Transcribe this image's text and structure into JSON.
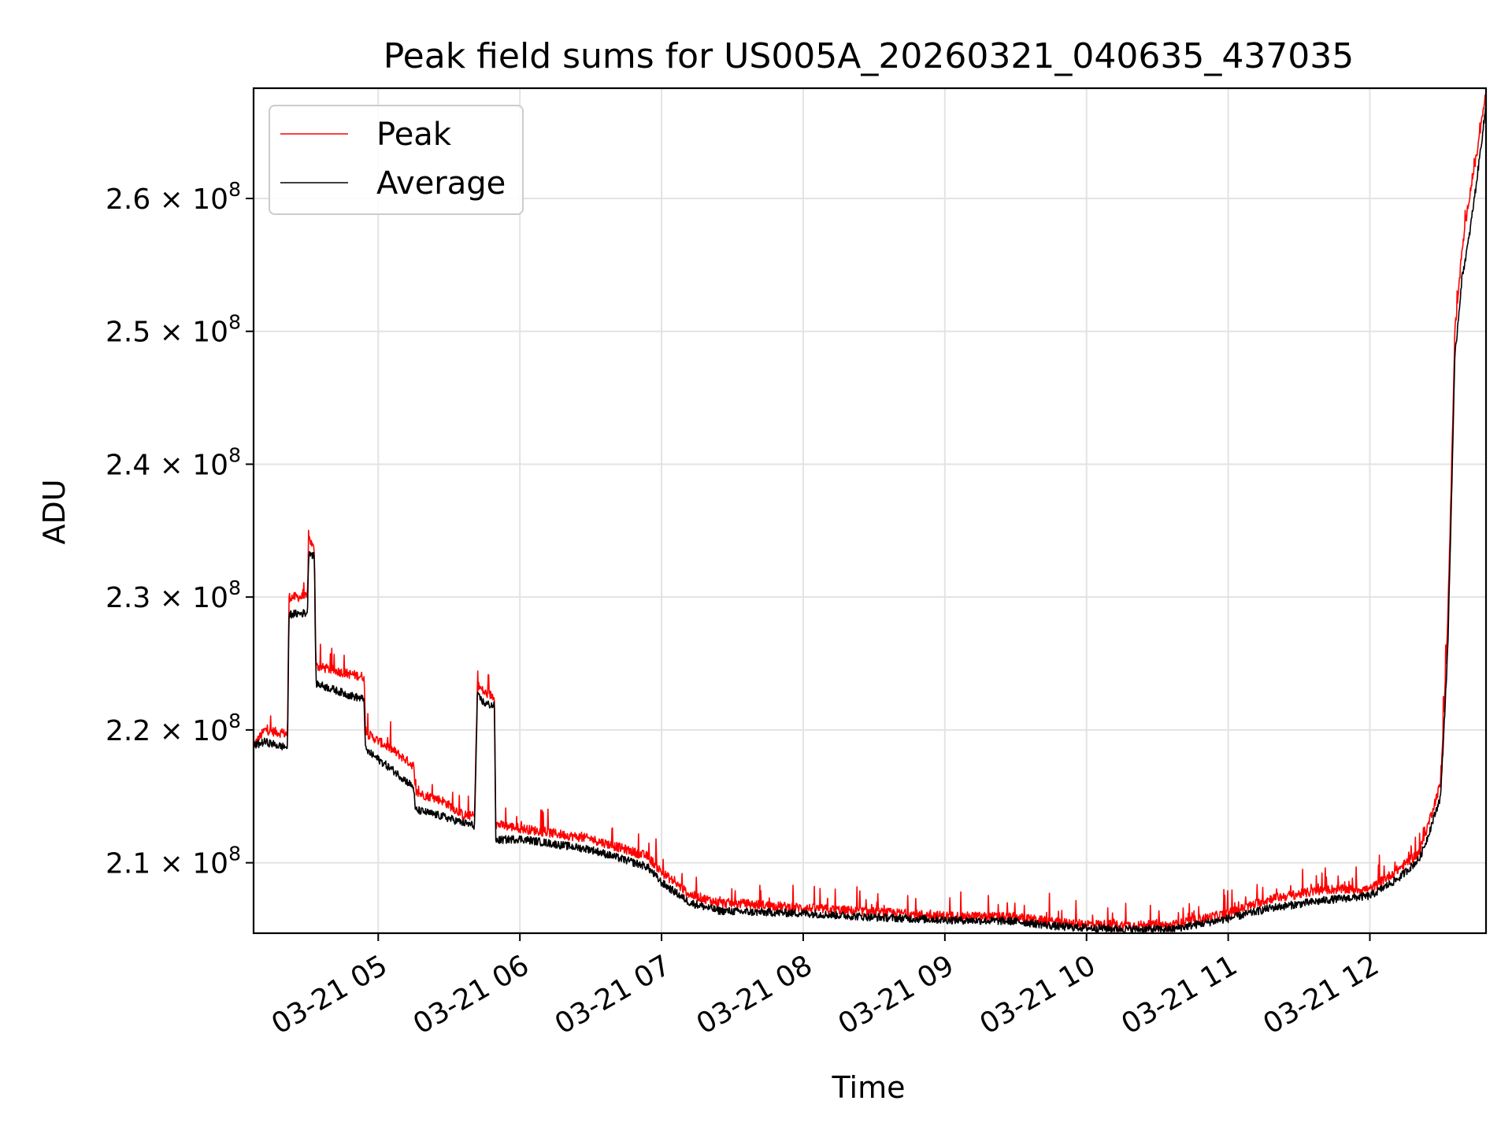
{
  "chart_data": {
    "type": "line",
    "title": "Peak field sums for US005A_20260321_040635_437035",
    "xlabel": "Time",
    "ylabel": "ADU",
    "x_unit": "hours since 2026-03-21 00:00",
    "xlim": [
      4.12,
      12.82
    ],
    "ylim": [
      204700000,
      268300000
    ],
    "x_ticks": [
      {
        "value": 5,
        "label": "03-21 05"
      },
      {
        "value": 6,
        "label": "03-21 06"
      },
      {
        "value": 7,
        "label": "03-21 07"
      },
      {
        "value": 8,
        "label": "03-21 08"
      },
      {
        "value": 9,
        "label": "03-21 09"
      },
      {
        "value": 10,
        "label": "03-21 10"
      },
      {
        "value": 11,
        "label": "03-21 11"
      },
      {
        "value": 12,
        "label": "03-21 12"
      }
    ],
    "y_ticks": [
      {
        "value": 210000000,
        "mantissa": "2.1",
        "label": "2.1 × 10^8"
      },
      {
        "value": 220000000,
        "mantissa": "2.2",
        "label": "2.2 × 10^8"
      },
      {
        "value": 230000000,
        "mantissa": "2.3",
        "label": "2.3 × 10^8"
      },
      {
        "value": 240000000,
        "mantissa": "2.4",
        "label": "2.4 × 10^8"
      },
      {
        "value": 250000000,
        "mantissa": "2.5",
        "label": "2.5 × 10^8"
      },
      {
        "value": 260000000,
        "mantissa": "2.6",
        "label": "2.6 × 10^8"
      }
    ],
    "grid": true,
    "legend": "top-left",
    "series": [
      {
        "name": "Peak",
        "color": "#ff0000",
        "x": [
          4.12,
          4.2,
          4.3,
          4.36,
          4.37,
          4.5,
          4.51,
          4.55,
          4.56,
          4.8,
          4.9,
          4.91,
          5.1,
          5.25,
          5.26,
          5.45,
          5.6,
          5.68,
          5.7,
          5.75,
          5.82,
          5.83,
          6.0,
          6.5,
          6.9,
          7.0,
          7.2,
          7.4,
          7.6,
          8.0,
          8.5,
          9.0,
          9.5,
          9.8,
          10.0,
          10.3,
          10.6,
          11.0,
          11.3,
          11.7,
          12.0,
          12.2,
          12.35,
          12.4,
          12.5,
          12.55,
          12.6,
          12.65,
          12.7,
          12.75,
          12.82
        ],
        "y": [
          218800000,
          220000000,
          219800000,
          219700000,
          230000000,
          230000000,
          234500000,
          233500000,
          224800000,
          224200000,
          224000000,
          219800000,
          218500000,
          217300000,
          215300000,
          214700000,
          213600000,
          213500000,
          223400000,
          222800000,
          222500000,
          212900000,
          212600000,
          211800000,
          210500000,
          209300000,
          207600000,
          207000000,
          206900000,
          206600000,
          206300000,
          206000000,
          205900000,
          205500000,
          205400000,
          205300000,
          205300000,
          206200000,
          207300000,
          208000000,
          208000000,
          209500000,
          210800000,
          212500000,
          216000000,
          228000000,
          250000000,
          256000000,
          260000000,
          263000000,
          268000000
        ]
      },
      {
        "name": "Average",
        "color": "#000000",
        "x": [
          4.12,
          4.2,
          4.3,
          4.36,
          4.37,
          4.5,
          4.51,
          4.55,
          4.56,
          4.8,
          4.9,
          4.91,
          5.1,
          5.25,
          5.26,
          5.45,
          5.6,
          5.68,
          5.7,
          5.75,
          5.82,
          5.83,
          6.0,
          6.5,
          6.9,
          7.0,
          7.2,
          7.4,
          7.6,
          8.0,
          8.5,
          9.0,
          9.5,
          9.8,
          10.0,
          10.3,
          10.6,
          11.0,
          11.3,
          11.7,
          12.0,
          12.2,
          12.35,
          12.4,
          12.5,
          12.55,
          12.6,
          12.65,
          12.7,
          12.75,
          12.82
        ],
        "y": [
          218800000,
          219100000,
          218800000,
          218700000,
          228700000,
          228800000,
          233500000,
          233000000,
          223500000,
          222600000,
          222300000,
          218500000,
          217000000,
          215700000,
          214000000,
          213500000,
          213000000,
          212800000,
          222600000,
          222000000,
          221800000,
          211700000,
          211800000,
          211000000,
          209700000,
          208500000,
          207000000,
          206400000,
          206300000,
          206200000,
          205900000,
          205700000,
          205600000,
          205200000,
          205100000,
          205000000,
          205000000,
          205800000,
          206600000,
          207200000,
          207500000,
          208800000,
          210300000,
          211700000,
          215000000,
          226000000,
          248000000,
          254000000,
          257000000,
          261000000,
          267000000
        ]
      }
    ]
  }
}
